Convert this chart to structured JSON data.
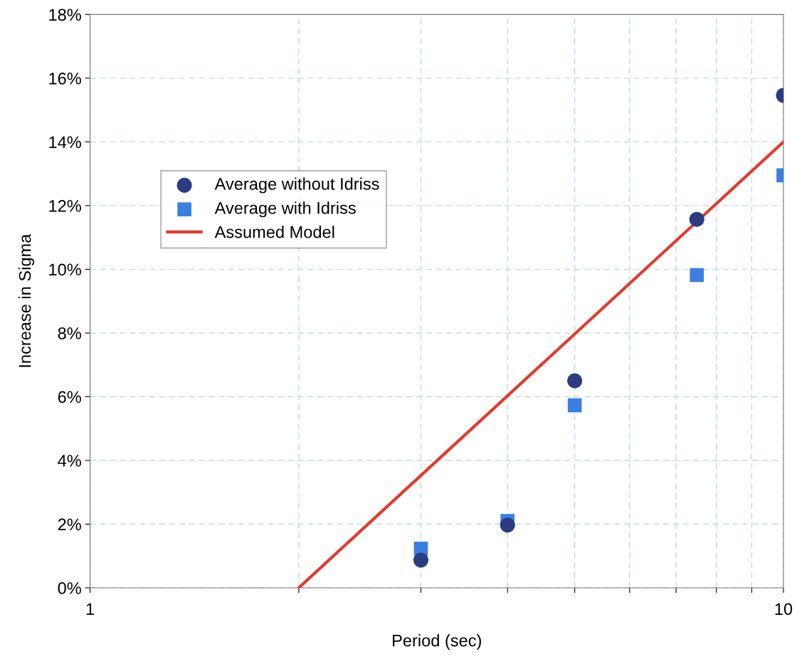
{
  "chart_data": {
    "type": "scatter",
    "xlabel": "Period (sec)",
    "ylabel": "Increase in Sigma",
    "log": "x",
    "x": [
      3,
      4,
      5,
      7.5,
      10
    ],
    "series": [
      {
        "name": "Average without Idriss",
        "color": "#2b3d7e",
        "marker": "circle",
        "values": [
          0.87,
          1.97,
          6.5,
          11.57,
          15.46
        ]
      },
      {
        "name": "Average with Idriss",
        "color": "#3b7fe0",
        "marker": "square",
        "values": [
          1.23,
          2.1,
          5.73,
          9.82,
          12.95
        ]
      },
      {
        "name": "Assumed Model",
        "type": "line",
        "color": "#e8372a",
        "marker": "none",
        "line_style": "solid",
        "x": [
          2,
          10
        ],
        "values": [
          0,
          14
        ]
      }
    ],
    "xlim": [
      1,
      10
    ],
    "xticks": [
      1,
      {
        "value": 2,
        "label": null
      },
      {
        "value": 3,
        "label": null
      },
      {
        "value": 4,
        "label": null
      },
      {
        "value": 5,
        "label": null
      },
      {
        "value": 6,
        "label": null
      },
      {
        "value": 7,
        "label": null
      },
      {
        "value": 8,
        "label": null
      },
      {
        "value": 9,
        "label": null
      },
      10
    ],
    "ylim": [
      0,
      18
    ],
    "yticks": [
      {
        "value": 0,
        "label": "0%"
      },
      {
        "value": 2,
        "label": "2%"
      },
      {
        "value": 4,
        "label": "4%"
      },
      {
        "value": 6,
        "label": "6%"
      },
      {
        "value": 8,
        "label": "8%"
      },
      {
        "value": 10,
        "label": "10%"
      },
      {
        "value": 12,
        "label": "12%"
      },
      {
        "value": 14,
        "label": "14%"
      },
      {
        "value": 16,
        "label": "16%"
      },
      {
        "value": 18,
        "label": "18%"
      }
    ],
    "grid": true,
    "legend": "left"
  }
}
